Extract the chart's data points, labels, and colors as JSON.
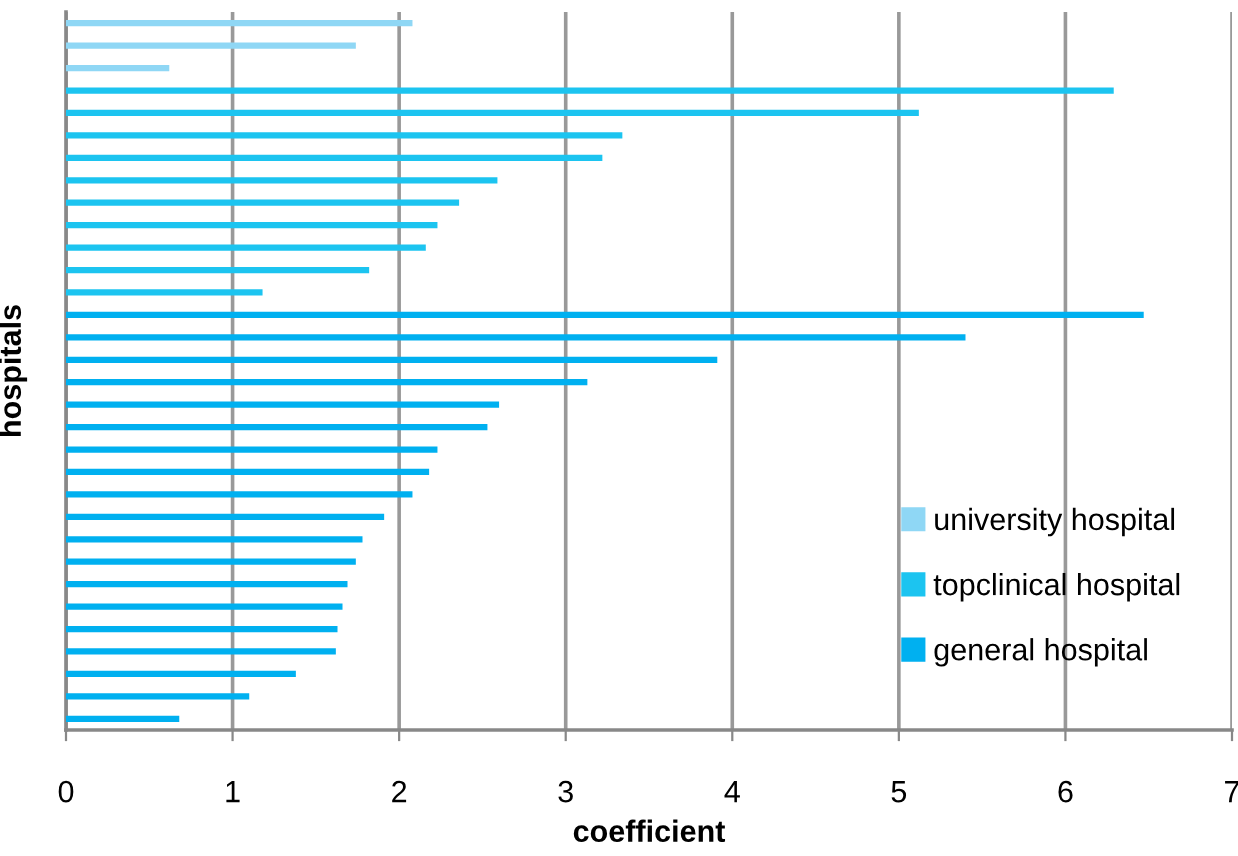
{
  "chart_data": {
    "type": "bar",
    "orientation": "horizontal",
    "xlabel": "coefficient",
    "ylabel": "hospitals",
    "categories": [
      null,
      null,
      null,
      null,
      null,
      null,
      null,
      null,
      null,
      null,
      null,
      null,
      null,
      null,
      null,
      null,
      null,
      null,
      null,
      null,
      null,
      null,
      null,
      null,
      null,
      null,
      null,
      null,
      null,
      null,
      null,
      null
    ],
    "series": [
      {
        "name": "university hospital",
        "color": "#8fd7f5",
        "values": [
          2.08,
          1.74,
          0.62,
          null,
          null,
          null,
          null,
          null,
          null,
          null,
          null,
          null,
          null,
          null,
          null,
          null,
          null,
          null,
          null,
          null,
          null,
          null,
          null,
          null,
          null,
          null,
          null,
          null,
          null,
          null,
          null,
          null
        ]
      },
      {
        "name": "topclinical hospital",
        "color": "#1cc4f0",
        "values": [
          null,
          null,
          null,
          6.29,
          5.12,
          3.34,
          3.22,
          2.59,
          2.36,
          2.23,
          2.16,
          1.82,
          1.18,
          null,
          null,
          null,
          null,
          null,
          null,
          null,
          null,
          null,
          null,
          null,
          null,
          null,
          null,
          null,
          null,
          null,
          null,
          null
        ]
      },
      {
        "name": "general hospital",
        "color": "#00b0f0",
        "values": [
          null,
          null,
          null,
          null,
          null,
          null,
          null,
          null,
          null,
          null,
          null,
          null,
          null,
          6.47,
          5.4,
          3.91,
          3.13,
          2.6,
          2.53,
          2.23,
          2.18,
          2.08,
          1.91,
          1.78,
          1.74,
          1.69,
          1.66,
          1.63,
          1.62,
          1.38,
          1.1,
          0.68
        ]
      }
    ],
    "xlim": [
      0,
      7
    ],
    "xticks": [
      0,
      1,
      2,
      3,
      4,
      5,
      6,
      7
    ],
    "grid": "x",
    "legend": "bottom right",
    "tick_labels": "x"
  }
}
